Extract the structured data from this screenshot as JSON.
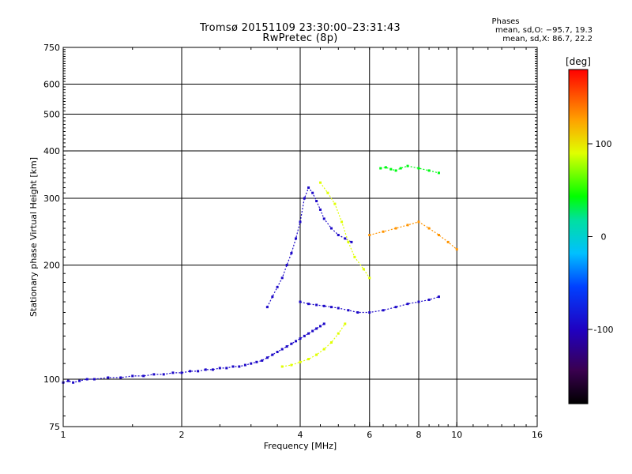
{
  "header": {
    "title_line1": "Tromsø 20151109 23:30:00–23:31:43",
    "title_line2": "RwPretec (8p)"
  },
  "phase_info": {
    "heading": "Phases",
    "line_o": "mean, sd,O: −95.7, 19.3",
    "line_x": "mean, sd,X:  86.7, 22.2"
  },
  "chart_data": {
    "type": "scatter",
    "xlabel": "Frequency [MHz]",
    "ylabel": "Stationary phase Virtual Height [km]",
    "x_scale": "log",
    "y_scale": "log",
    "xlim": [
      1,
      16
    ],
    "ylim": [
      75,
      750
    ],
    "x_ticks": [
      1,
      2,
      4,
      6,
      8,
      10,
      16
    ],
    "y_ticks": [
      75,
      100,
      200,
      300,
      400,
      500,
      600,
      750
    ],
    "x_gridlines": [
      2,
      4,
      6,
      8,
      10
    ],
    "y_gridlines": [
      100,
      200,
      300,
      400,
      500,
      600
    ],
    "grid": true,
    "colorbar": {
      "label": "[deg]",
      "min": -180,
      "max": 180,
      "ticks": [
        100,
        0,
        -100
      ]
    },
    "series": [
      {
        "phase_deg": -95,
        "x": [
          1.0,
          1.03,
          1.06,
          1.1,
          1.15,
          1.2,
          1.3,
          1.4,
          1.5,
          1.6,
          1.7,
          1.8,
          1.9,
          2.0,
          2.1,
          2.2,
          2.3,
          2.4,
          2.5,
          2.6,
          2.7,
          2.8,
          2.9,
          3.0,
          3.1,
          3.2,
          3.3,
          3.4,
          3.5,
          3.6,
          3.7,
          3.8,
          3.9,
          4.0,
          4.1,
          4.2,
          4.3,
          4.4,
          4.5,
          4.6
        ],
        "y": [
          98,
          99,
          98,
          99,
          100,
          100,
          101,
          101,
          102,
          102,
          103,
          103,
          104,
          104,
          105,
          105,
          106,
          106,
          107,
          107,
          108,
          108,
          109,
          110,
          111,
          112,
          114,
          116,
          118,
          120,
          122,
          124,
          126,
          128,
          130,
          132,
          134,
          136,
          138,
          140
        ]
      },
      {
        "phase_deg": -95,
        "x": [
          3.3,
          3.4,
          3.5,
          3.6,
          3.7,
          3.8,
          3.9,
          4.0,
          4.1,
          4.2,
          4.3,
          4.4,
          4.5,
          4.6,
          4.8,
          5.0,
          5.2,
          5.4
        ],
        "y": [
          155,
          165,
          175,
          185,
          200,
          215,
          235,
          260,
          300,
          320,
          310,
          295,
          280,
          265,
          250,
          240,
          235,
          230
        ]
      },
      {
        "phase_deg": -95,
        "x": [
          4.0,
          4.2,
          4.4,
          4.6,
          4.8,
          5.0,
          5.3,
          5.6,
          6.0,
          6.5,
          7.0,
          7.5,
          8.0,
          8.5,
          9.0
        ],
        "y": [
          160,
          158,
          157,
          156,
          155,
          154,
          152,
          150,
          150,
          152,
          155,
          158,
          160,
          162,
          165
        ]
      },
      {
        "phase_deg": 90,
        "x": [
          3.6,
          3.8,
          4.0,
          4.2,
          4.4,
          4.6,
          4.8,
          5.0,
          5.2
        ],
        "y": [
          108,
          109,
          111,
          113,
          116,
          120,
          125,
          132,
          140
        ]
      },
      {
        "phase_deg": 90,
        "x": [
          4.5,
          4.7,
          4.9,
          5.1,
          5.3,
          5.5,
          5.8,
          6.0
        ],
        "y": [
          330,
          310,
          290,
          260,
          230,
          210,
          195,
          185
        ]
      },
      {
        "phase_deg": 40,
        "x": [
          6.4,
          6.6,
          6.8,
          7.0,
          7.2,
          7.5,
          8.0,
          8.5,
          9.0
        ],
        "y": [
          360,
          362,
          358,
          355,
          360,
          365,
          360,
          355,
          350
        ]
      },
      {
        "phase_deg": 130,
        "x": [
          6.0,
          6.5,
          7.0,
          7.5,
          8.0,
          8.5,
          9.0,
          9.5,
          10.0
        ],
        "y": [
          240,
          245,
          250,
          255,
          260,
          250,
          240,
          230,
          220
        ]
      }
    ]
  }
}
